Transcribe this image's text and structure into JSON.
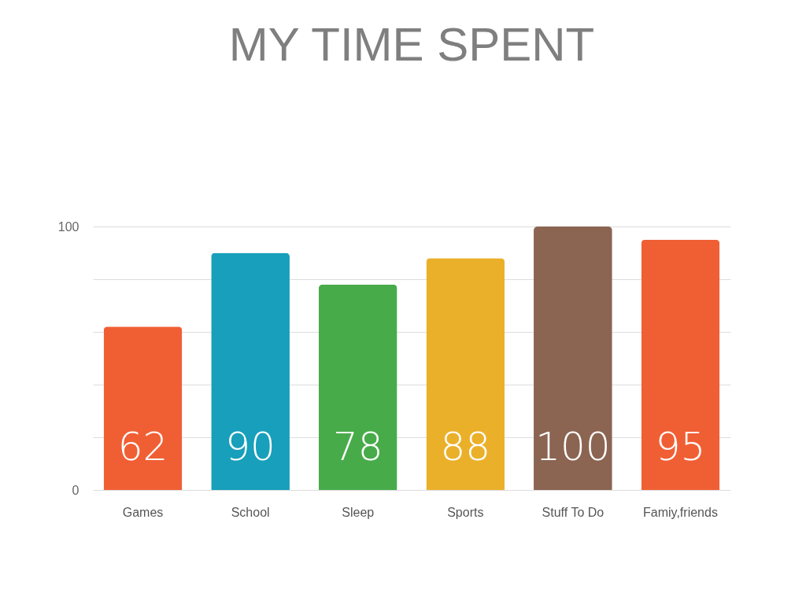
{
  "chart_data": {
    "type": "bar",
    "title": "MY TIME SPENT",
    "categories": [
      "Games",
      "School",
      "Sleep",
      "Sports",
      "Stuff To Do",
      "Famiy,friends"
    ],
    "values": [
      62,
      90,
      78,
      88,
      100,
      95
    ],
    "colors": [
      "#f05f34",
      "#179fbb",
      "#48ab4a",
      "#ebb02a",
      "#8b6552",
      "#f05f34"
    ],
    "ylim": [
      0,
      100
    ],
    "yticks": [
      0,
      {
        "value": 20,
        "label": null
      },
      {
        "value": 40,
        "label": null
      },
      {
        "value": 60,
        "label": null
      },
      {
        "value": 80,
        "label": null
      },
      100
    ],
    "grid": "y",
    "data_labels": true
  }
}
